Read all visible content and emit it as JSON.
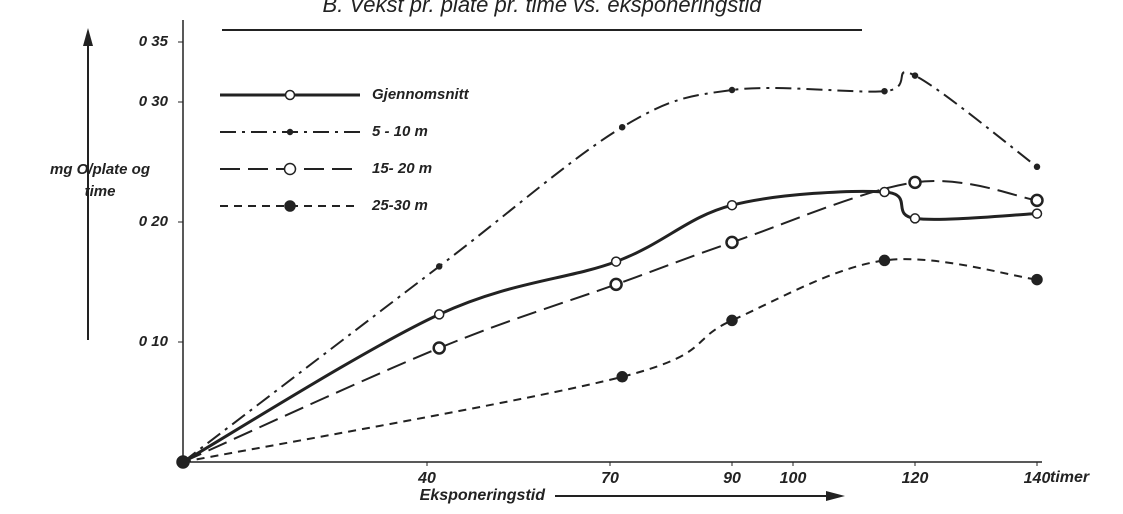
{
  "chart_data": {
    "type": "line",
    "title": "B. Vekst pr. plate pr. time vs. eksponeringstid",
    "ylabel": [
      "mg O/plate og",
      "time"
    ],
    "xlabel": "Eksponeringstid",
    "x_unit": "timer",
    "xlim": [
      0,
      140
    ],
    "ylim": [
      0,
      0.35
    ],
    "xticks": [
      40,
      70,
      90,
      100,
      120,
      140
    ],
    "yticks": [
      {
        "value": 0.1,
        "label": "0 10"
      },
      {
        "value": 0.2,
        "label": "0 20"
      },
      {
        "value": 0.3,
        "label": "0 30"
      },
      {
        "value": 0.35,
        "label": "0 35"
      }
    ],
    "series": [
      {
        "name": "Gjennomsnitt",
        "color": "#222",
        "dash": "none",
        "marker": "open",
        "x": [
          0,
          42,
          71,
          90,
          115,
          120,
          140
        ],
        "values": [
          0,
          0.123,
          0.167,
          0.214,
          0.225,
          0.203,
          0.207
        ]
      },
      {
        "name": "5 - 10 m",
        "color": "#222",
        "dash": "16 6 3 6",
        "marker": "dot",
        "x": [
          0,
          42,
          72,
          90,
          115,
          120,
          140
        ],
        "values": [
          0,
          0.163,
          0.279,
          0.31,
          0.309,
          0.322,
          0.246
        ]
      },
      {
        "name": "15- 20 m",
        "color": "#222",
        "dash": "20 8",
        "marker": "ring",
        "x": [
          0,
          42,
          71,
          90,
          120,
          140
        ],
        "values": [
          0,
          0.095,
          0.148,
          0.183,
          0.233,
          0.218
        ]
      },
      {
        "name": "25-30 m",
        "color": "#222",
        "dash": "8 6",
        "marker": "filled",
        "x": [
          0,
          72,
          90,
          115,
          140
        ],
        "values": [
          0,
          0.071,
          0.118,
          0.168,
          0.152
        ]
      }
    ]
  }
}
